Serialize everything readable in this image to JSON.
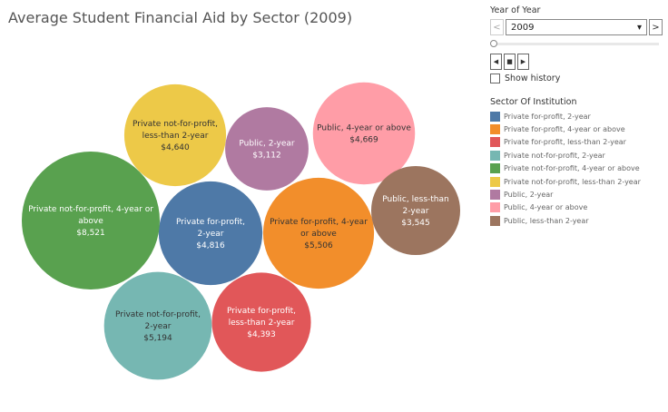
{
  "title": "Average Student Financial Aid by Sector (2009)",
  "filter": {
    "label": "Year of Year",
    "value": "2009",
    "prev": "<",
    "next": ">",
    "show_history": "Show history"
  },
  "legend": {
    "title": "Sector Of Institution"
  },
  "chart_data": {
    "type": "packed-bubble",
    "title": "Average Student Financial Aid by Sector (2009)",
    "legend_placement": "right",
    "series": [
      {
        "name": "Private for-profit, 2-year",
        "label": [
          "Private for-profit,",
          "2-year"
        ],
        "value": 4816,
        "value_label": "$4,816",
        "color": "#4e79a7",
        "text": "#fff"
      },
      {
        "name": "Private for-profit, 4-year or above",
        "label": [
          "Private for-profit, 4-year",
          "or above"
        ],
        "value": 5506,
        "value_label": "$5,506",
        "color": "#f28e2b",
        "text": "#333"
      },
      {
        "name": "Private for-profit, less-than 2-year",
        "label": [
          "Private for-profit,",
          "less-than 2-year"
        ],
        "value": 4393,
        "value_label": "$4,393",
        "color": "#e15759",
        "text": "#fff"
      },
      {
        "name": "Private not-for-profit, 2-year",
        "label": [
          "Private not-for-profit,",
          "2-year"
        ],
        "value": 5194,
        "value_label": "$5,194",
        "color": "#76b7b2",
        "text": "#333"
      },
      {
        "name": "Private not-for-profit, 4-year or above",
        "label": [
          "Private not-for-profit, 4-year or",
          "above"
        ],
        "value": 8521,
        "value_label": "$8,521",
        "color": "#59a14f",
        "text": "#fff"
      },
      {
        "name": "Private not-for-profit, less-than 2-year",
        "label": [
          "Private not-for-profit,",
          "less-than 2-year"
        ],
        "value": 4640,
        "value_label": "$4,640",
        "color": "#edc948",
        "text": "#333"
      },
      {
        "name": "Public, 2-year",
        "label": [
          "Public, 2-year"
        ],
        "value": 3112,
        "value_label": "$3,112",
        "color": "#b07aa1",
        "text": "#fff"
      },
      {
        "name": "Public, 4-year or above",
        "label": [
          "Public, 4-year or above"
        ],
        "value": 4669,
        "value_label": "$4,669",
        "color": "#ff9da7",
        "text": "#333"
      },
      {
        "name": "Public, less-than 2-year",
        "label": [
          "Public, less-than",
          "2-year"
        ],
        "value": 3545,
        "value_label": "$3,545",
        "color": "#9c755f",
        "text": "#fff"
      }
    ]
  }
}
